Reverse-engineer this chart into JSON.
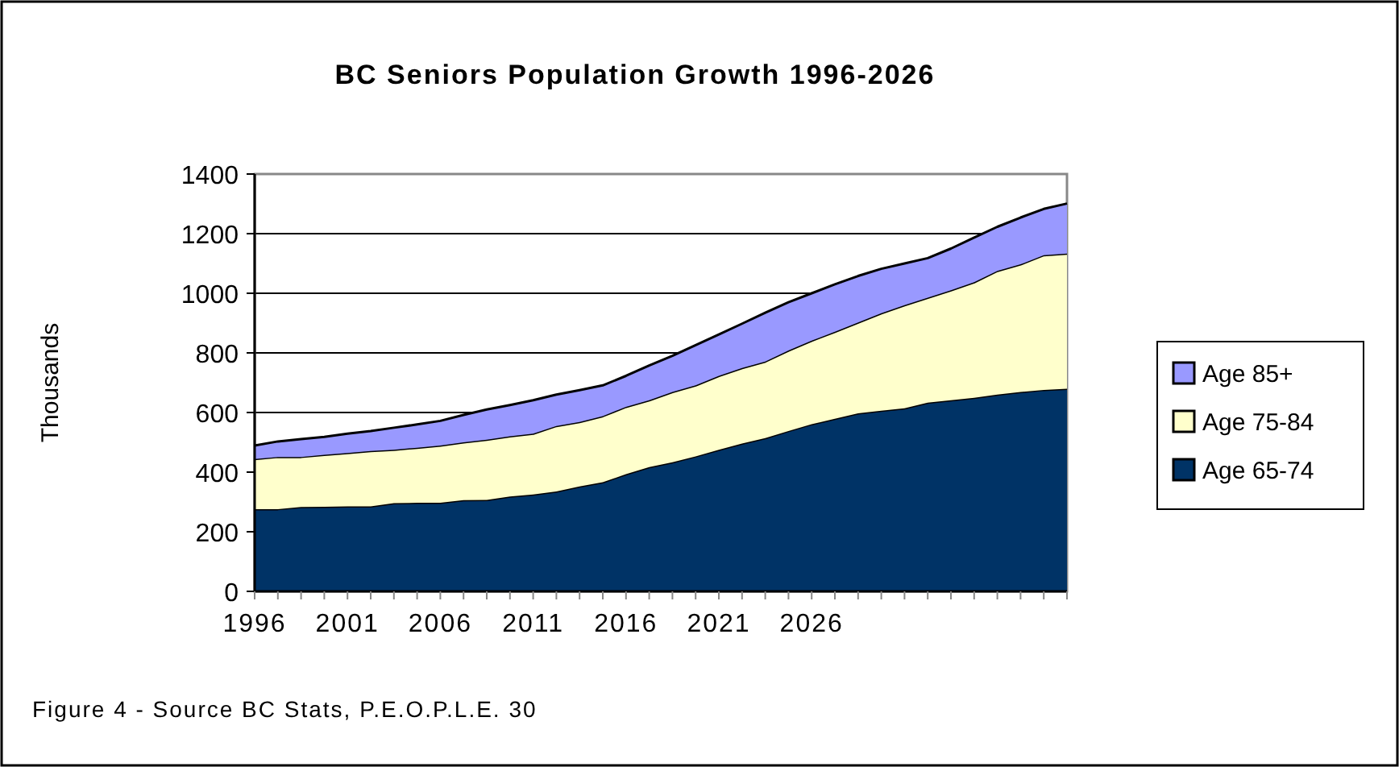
{
  "chart_data": {
    "type": "area",
    "title": "BC Seniors Population Growth 1996-2026",
    "ylabel": "Thousands",
    "annotations": [
      "Figure 4 - Source BC Stats, P.E.O.P.L.E. 30"
    ],
    "categories": [
      "1996",
      null,
      null,
      null,
      "2001",
      null,
      null,
      null,
      "2006",
      null,
      null,
      null,
      "2011",
      null,
      null,
      null,
      "2016",
      null,
      null,
      null,
      "2021",
      null,
      null,
      null,
      "2026",
      null,
      null,
      null,
      null,
      null,
      null,
      null,
      null,
      null,
      null,
      null
    ],
    "stacked": true,
    "ylim": [
      0,
      1400
    ],
    "yticks": [
      0,
      200,
      400,
      600,
      800,
      1000,
      1200,
      1400
    ],
    "grid": "y",
    "legend": "right",
    "series": [
      {
        "name": "Age 65-74",
        "color": "#003366",
        "values": [
          276,
          276,
          283,
          284,
          285,
          285,
          296,
          297,
          297,
          306,
          307,
          318,
          325,
          335,
          352,
          366,
          393,
          417,
          433,
          453,
          475,
          496,
          514,
          538,
          561,
          579,
          597,
          606,
          614,
          633,
          641,
          649,
          660,
          669,
          676,
          680
        ]
      },
      {
        "name": "Age 75-84",
        "color": "#ffffcc",
        "values": [
          168,
          175,
          168,
          174,
          179,
          186,
          179,
          185,
          192,
          194,
          202,
          202,
          204,
          220,
          216,
          222,
          226,
          224,
          236,
          238,
          248,
          253,
          257,
          270,
          280,
          292,
          305,
          327,
          346,
          352,
          369,
          388,
          415,
          428,
          452,
          453
        ]
      },
      {
        "name": "Age 85+",
        "color": "#9999ff",
        "values": [
          45,
          52,
          60,
          60,
          65,
          67,
          74,
          78,
          83,
          92,
          101,
          105,
          112,
          105,
          107,
          103,
          104,
          117,
          121,
          135,
          139,
          149,
          164,
          162,
          159,
          159,
          156,
          149,
          140,
          133,
          140,
          150,
          148,
          157,
          155,
          168
        ]
      }
    ]
  }
}
